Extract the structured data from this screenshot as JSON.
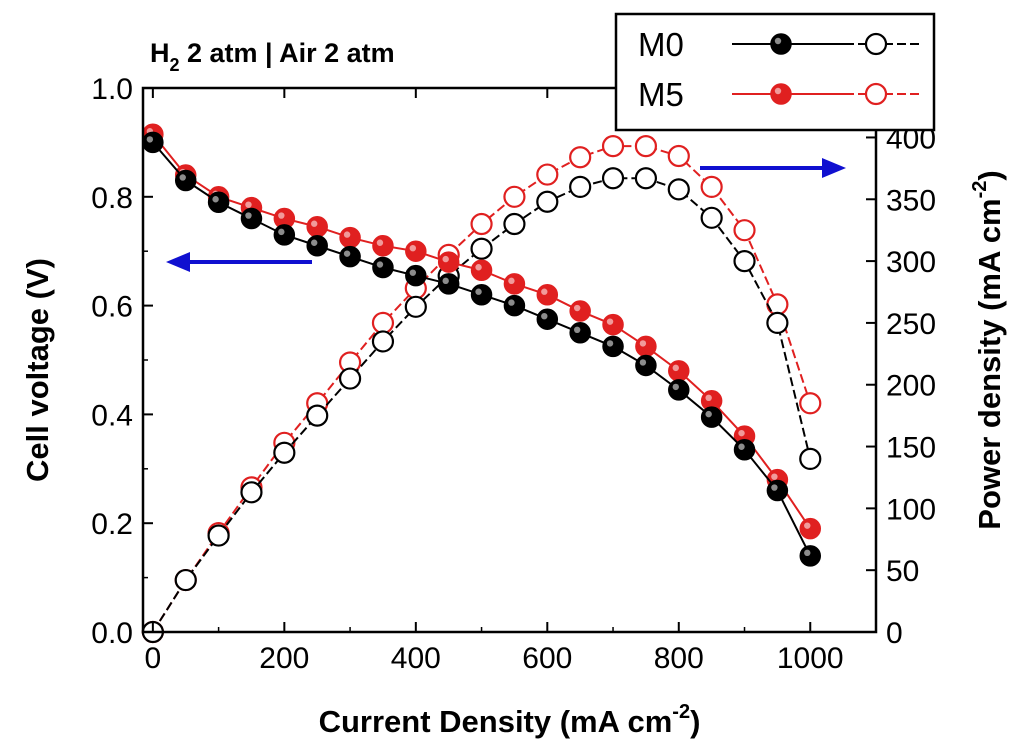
{
  "chart_data": {
    "type": "line",
    "title": {
      "h": "H",
      "sub": "2",
      "rest": " 2 atm | Air 2 atm"
    },
    "xlabel": {
      "main": "Current Density (mA cm",
      "sup": "-2",
      "close": ")"
    },
    "ylabel_left": "Cell voltage (V)",
    "ylabel_right": {
      "main": "Power density (mA cm",
      "sup": "-2",
      "close": ")"
    },
    "xlim": [
      -15,
      1100
    ],
    "ylim_left": [
      0,
      1.0
    ],
    "ylim_right": [
      0,
      440
    ],
    "x_ticks": [
      "0",
      "200",
      "400",
      "600",
      "800",
      "1000"
    ],
    "y_left_ticks": [
      "0.0",
      "0.2",
      "0.4",
      "0.6",
      "0.8",
      "1.0"
    ],
    "y_right_ticks": [
      "0",
      "50",
      "100",
      "150",
      "200",
      "250",
      "300",
      "350",
      "400"
    ],
    "x": [
      0,
      50,
      100,
      150,
      200,
      250,
      300,
      350,
      400,
      450,
      500,
      550,
      600,
      650,
      700,
      750,
      800,
      850,
      900,
      950,
      1000
    ],
    "series": [
      {
        "name": "M0",
        "axis": "left",
        "marker": "filled",
        "color": "#000000",
        "values": [
          0.9,
          0.83,
          0.79,
          0.76,
          0.73,
          0.71,
          0.69,
          0.67,
          0.655,
          0.64,
          0.62,
          0.6,
          0.575,
          0.55,
          0.525,
          0.49,
          0.445,
          0.395,
          0.335,
          0.26,
          0.14
        ]
      },
      {
        "name": "M5",
        "axis": "left",
        "marker": "filled",
        "color": "#e02020",
        "values": [
          0.915,
          0.84,
          0.8,
          0.78,
          0.76,
          0.745,
          0.725,
          0.71,
          0.7,
          0.68,
          0.665,
          0.64,
          0.62,
          0.59,
          0.565,
          0.525,
          0.48,
          0.425,
          0.36,
          0.28,
          0.19
        ]
      },
      {
        "name": "M0",
        "axis": "right",
        "marker": "open",
        "color": "#000000",
        "values": [
          0,
          42,
          78,
          113,
          145,
          175,
          205,
          235,
          263,
          288,
          310,
          330,
          348,
          360,
          367,
          367,
          358,
          335,
          300,
          250,
          140
        ]
      },
      {
        "name": "M5",
        "axis": "right",
        "marker": "open",
        "color": "#e02020",
        "values": [
          0,
          42,
          80,
          117,
          153,
          185,
          218,
          250,
          278,
          305,
          330,
          352,
          370,
          384,
          393,
          393,
          385,
          360,
          325,
          265,
          185
        ]
      }
    ],
    "legend": {
      "position": "top-right",
      "entries": [
        "M0",
        "M5"
      ]
    },
    "annotations": [
      {
        "type": "arrow",
        "direction": "left",
        "color": "#1010d0",
        "points_to": "left axis"
      },
      {
        "type": "arrow",
        "direction": "right",
        "color": "#1010d0",
        "points_to": "right axis"
      }
    ]
  }
}
